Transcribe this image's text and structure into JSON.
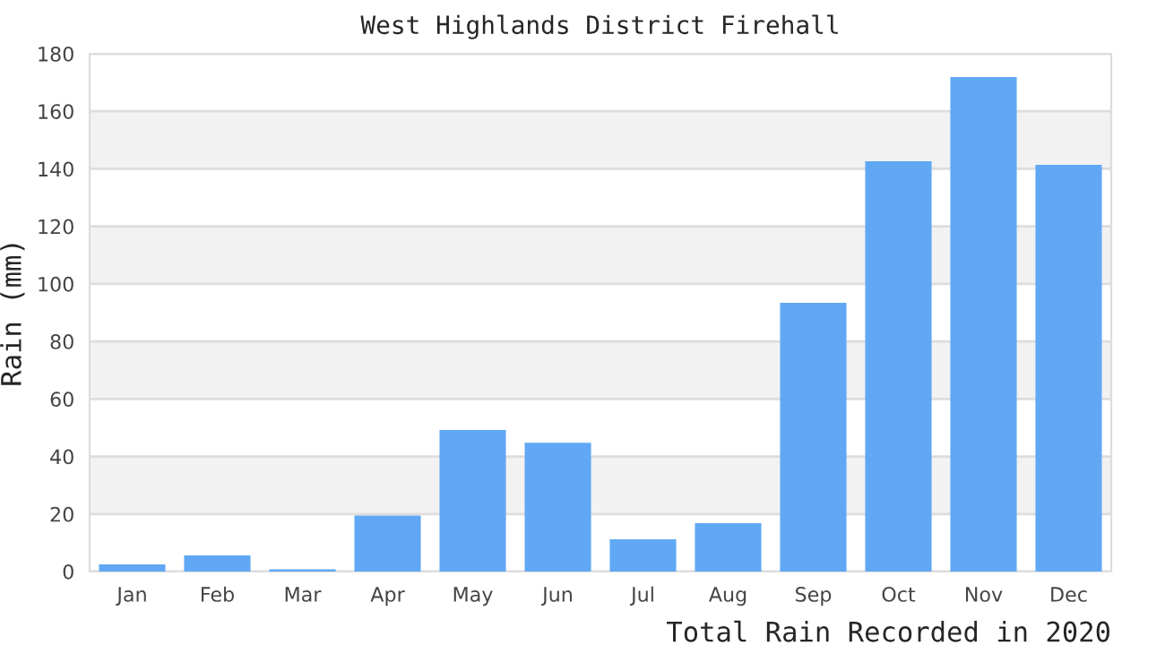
{
  "chart_data": {
    "type": "bar",
    "title": "West Highlands District Firehall",
    "xlabel": "Total Rain Recorded in 2020",
    "ylabel": "Rain (mm)",
    "categories": [
      "Jan",
      "Feb",
      "Mar",
      "Apr",
      "May",
      "Jun",
      "Jul",
      "Aug",
      "Sep",
      "Oct",
      "Nov",
      "Dec"
    ],
    "values": [
      2.5,
      5.6,
      0.8,
      19.5,
      49.2,
      44.8,
      11.2,
      16.8,
      93.4,
      142.6,
      171.9,
      141.4
    ],
    "color": "#60a8f4",
    "ylim": [
      0,
      180
    ],
    "yticks": [
      0,
      20,
      40,
      60,
      80,
      100,
      120,
      140,
      160,
      180
    ],
    "grid": "y",
    "bands": [
      {
        "axis": "y",
        "from": 20,
        "to": 40,
        "color": "#f2f2f2"
      },
      {
        "axis": "y",
        "from": 60,
        "to": 80,
        "color": "#f2f2f2"
      },
      {
        "axis": "y",
        "from": 100,
        "to": 120,
        "color": "#f2f2f2"
      },
      {
        "axis": "y",
        "from": 140,
        "to": 160,
        "color": "#f2f2f2"
      }
    ]
  }
}
